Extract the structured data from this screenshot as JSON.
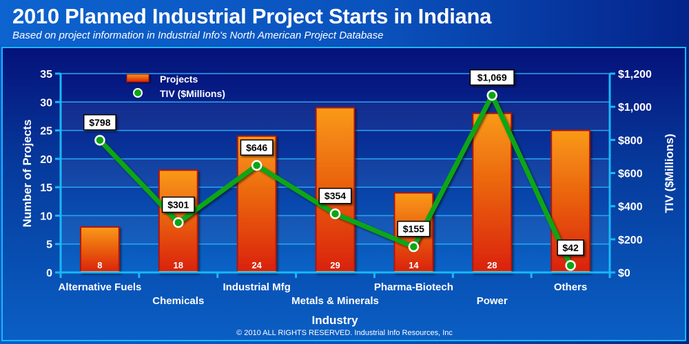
{
  "header": {
    "title": "2010 Planned Industrial Project Starts in Indiana",
    "subtitle": "Based on project information in Industrial Info's North American Project Database"
  },
  "footer": {
    "copyright": "© 2010 ALL RIGHTS RESERVED. Industrial Info Resources, Inc"
  },
  "colors": {
    "bar_top": "#f99a13",
    "bar_bottom": "#d9210e",
    "bar_border": "#b3140c",
    "line": "#0ca612",
    "axis": "#19b8f5",
    "text": "#ffffff"
  },
  "chart_data": {
    "type": "bar+line",
    "title": "2010 Planned Industrial Project Starts in Indiana",
    "xlabel": "Industry",
    "ylabel": "Number of Projects",
    "y2label": "TIV ($Millions)",
    "categories": [
      "Alternative Fuels",
      "Chemicals",
      "Industrial Mfg",
      "Metals & Minerals",
      "Pharma-Biotech",
      "Power",
      "Others"
    ],
    "series": [
      {
        "name": "Projects",
        "type": "bar",
        "axis": "left",
        "values": [
          8,
          18,
          24,
          29,
          14,
          28,
          25
        ]
      },
      {
        "name": "TIV ($Millions)",
        "type": "line",
        "axis": "right",
        "values": [
          798,
          301,
          646,
          354,
          155,
          1069,
          42
        ],
        "labels": [
          "$798",
          "$301",
          "$646",
          "$354",
          "$155",
          "$1,069",
          "$42"
        ]
      }
    ],
    "ylim": [
      0,
      35
    ],
    "yticks": [
      0,
      5,
      10,
      15,
      20,
      25,
      30,
      35
    ],
    "y2lim": [
      0,
      1200
    ],
    "y2ticks": [
      0,
      200,
      400,
      600,
      800,
      1000,
      1200
    ],
    "y2ticklabels": [
      "$0",
      "$200",
      "$400",
      "$600",
      "$800",
      "$1,000",
      "$1,200"
    ],
    "grid": true,
    "legend": "top-left"
  }
}
